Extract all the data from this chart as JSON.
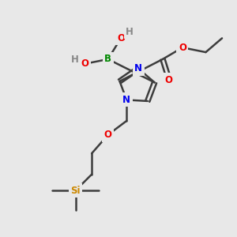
{
  "bg_color": "#e8e8e8",
  "bond_color": "#3d3d3d",
  "N_color": "#0000ee",
  "O_color": "#ee0000",
  "B_color": "#008800",
  "Si_color": "#cc8800",
  "H_color": "#888888",
  "line_width": 1.8,
  "font_size": 8.5,
  "figsize": [
    3.0,
    3.0
  ],
  "dpi": 100,
  "xlim": [
    0,
    10
  ],
  "ylim": [
    0,
    10
  ]
}
